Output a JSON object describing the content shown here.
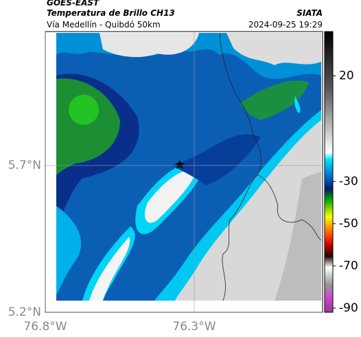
{
  "header": {
    "source": "GOES-EAST",
    "title": "Temperatura de Brillo CH13",
    "subtitle": "Vía Medellín - Quibdó 50km",
    "brand": "SIATA",
    "datetime": "2024-09-25 19:29"
  },
  "map": {
    "latlim": [
      5.2,
      6.156
    ],
    "lonlim": [
      -76.8,
      -75.869
    ],
    "latticks": [
      {
        "value": 5.7,
        "label": "5.7°N"
      },
      {
        "value": 5.2,
        "label": "5.2°N"
      }
    ],
    "lonticks": [
      {
        "value": -76.8,
        "label": "76.8°W"
      },
      {
        "value": -76.3,
        "label": "76.3°W"
      }
    ],
    "colorbar": {
      "lim": [
        -92,
        41
      ],
      "ticks": [
        20,
        -30,
        -50,
        -70,
        -90
      ]
    }
  }
}
